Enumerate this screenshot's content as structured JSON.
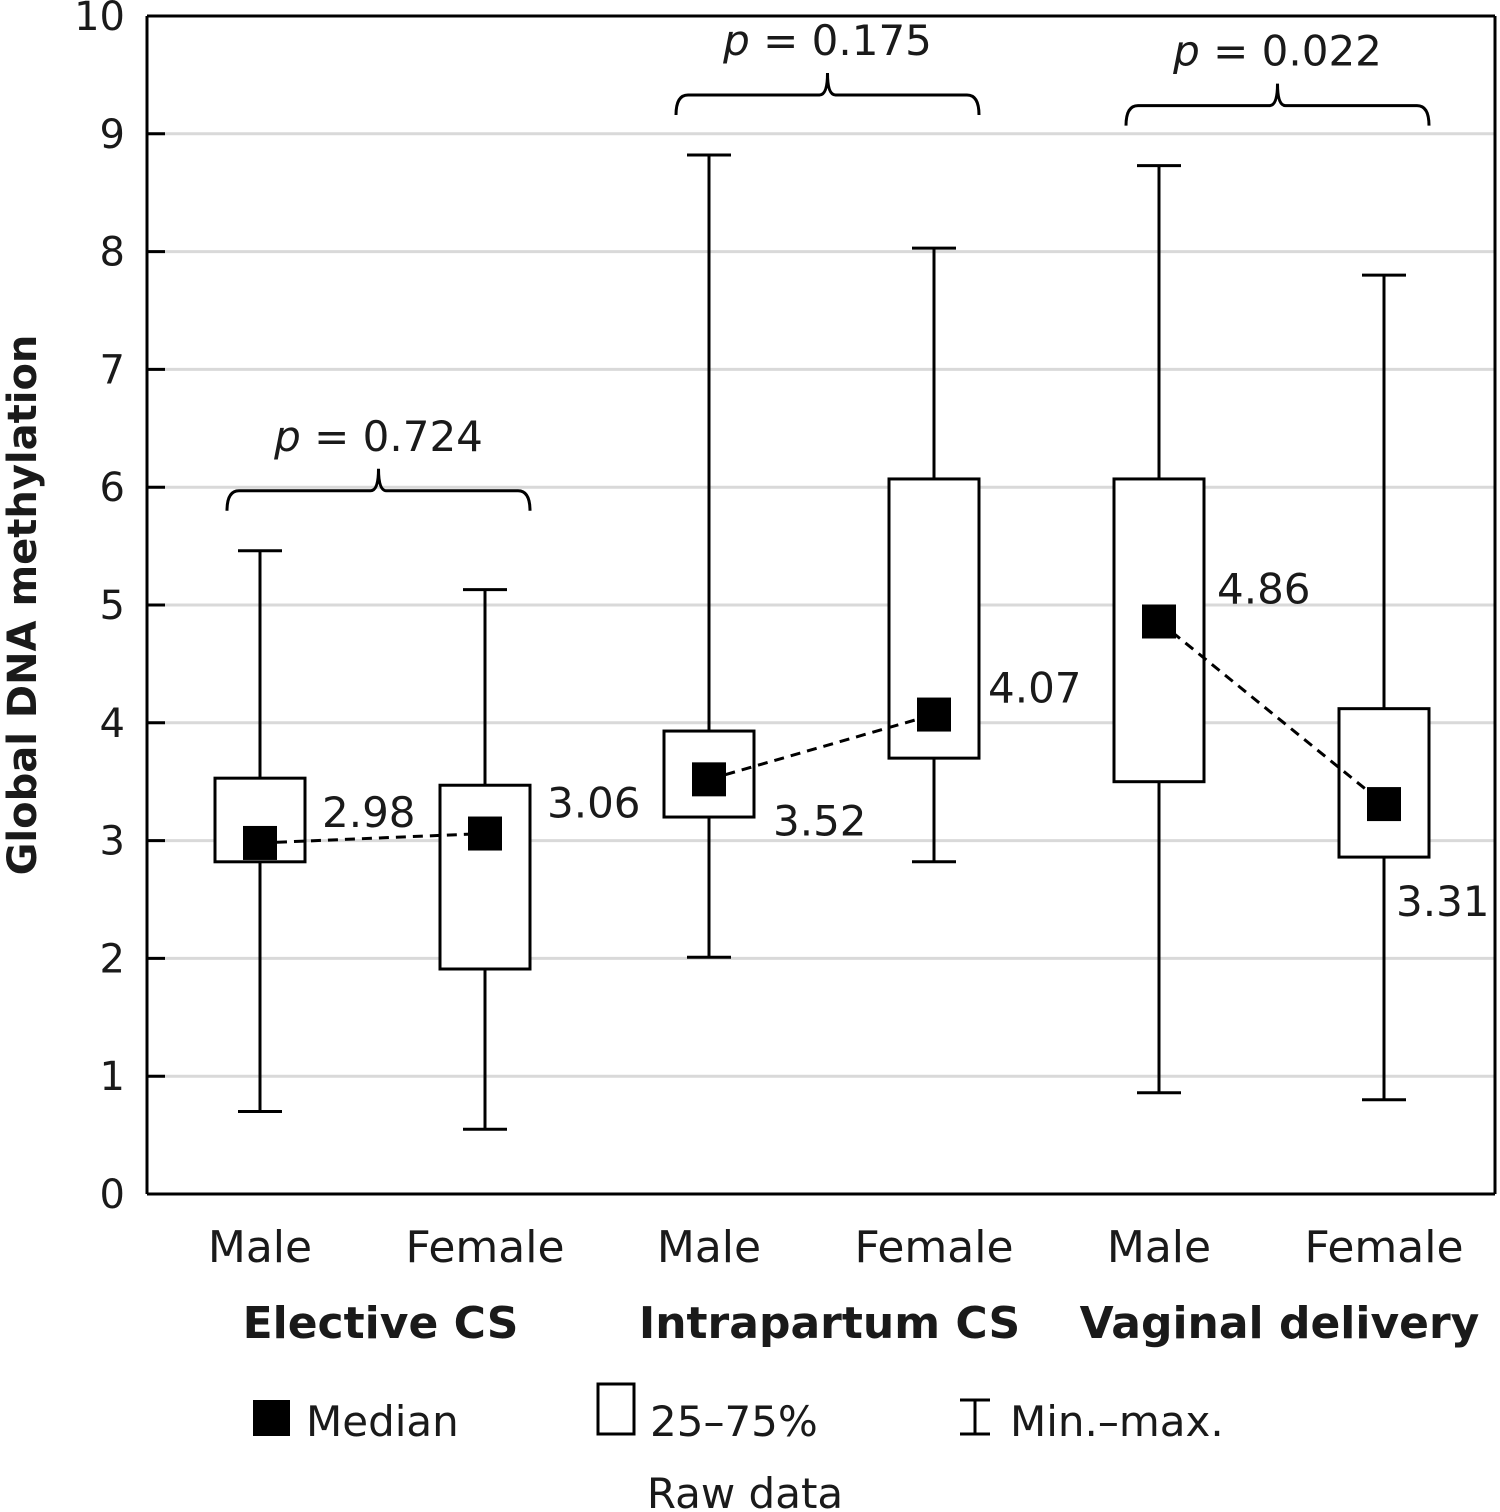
{
  "chart_data": {
    "type": "boxplot",
    "ylabel": "Global DNA methylation",
    "ylim": [
      0,
      10
    ],
    "yticks": [
      "0",
      "1",
      "2",
      "3",
      "4",
      "5",
      "6",
      "7",
      "8",
      "9",
      "10"
    ],
    "grid": true,
    "groups": [
      {
        "label": "Elective CS",
        "p_label": "p",
        "p_value": "= 0.724",
        "boxes": [
          {
            "category": "Male",
            "min": 0.7,
            "q1": 2.82,
            "median": 2.98,
            "q3": 3.53,
            "max": 5.46,
            "median_label": "2.98"
          },
          {
            "category": "Female",
            "min": 0.55,
            "q1": 1.91,
            "median": 3.06,
            "q3": 3.47,
            "max": 5.13,
            "median_label": "3.06"
          }
        ]
      },
      {
        "label": "Intrapartum CS",
        "p_label": "p",
        "p_value": "= 0.175",
        "boxes": [
          {
            "category": "Male",
            "min": 2.01,
            "q1": 3.2,
            "median": 3.52,
            "q3": 3.93,
            "max": 8.82,
            "median_label": "3.52"
          },
          {
            "category": "Female",
            "min": 2.82,
            "q1": 3.7,
            "median": 4.07,
            "q3": 6.07,
            "max": 8.03,
            "median_label": "4.07"
          }
        ]
      },
      {
        "label": "Vaginal delivery",
        "p_label": "p",
        "p_value": "= 0.022",
        "boxes": [
          {
            "category": "Male",
            "min": 0.86,
            "q1": 3.5,
            "median": 4.86,
            "q3": 6.07,
            "max": 8.73,
            "median_label": "4.86"
          },
          {
            "category": "Female",
            "min": 0.8,
            "q1": 2.86,
            "median": 3.31,
            "q3": 4.12,
            "max": 7.8,
            "median_label": "3.31"
          }
        ]
      }
    ],
    "legend": {
      "median": "Median",
      "box": "25–75%",
      "whisker": "Min.–max.",
      "subtitle": "Raw data",
      "placement": "bottom"
    },
    "colors": {
      "grid": "#d9d9d9",
      "marks": "#000000"
    }
  }
}
